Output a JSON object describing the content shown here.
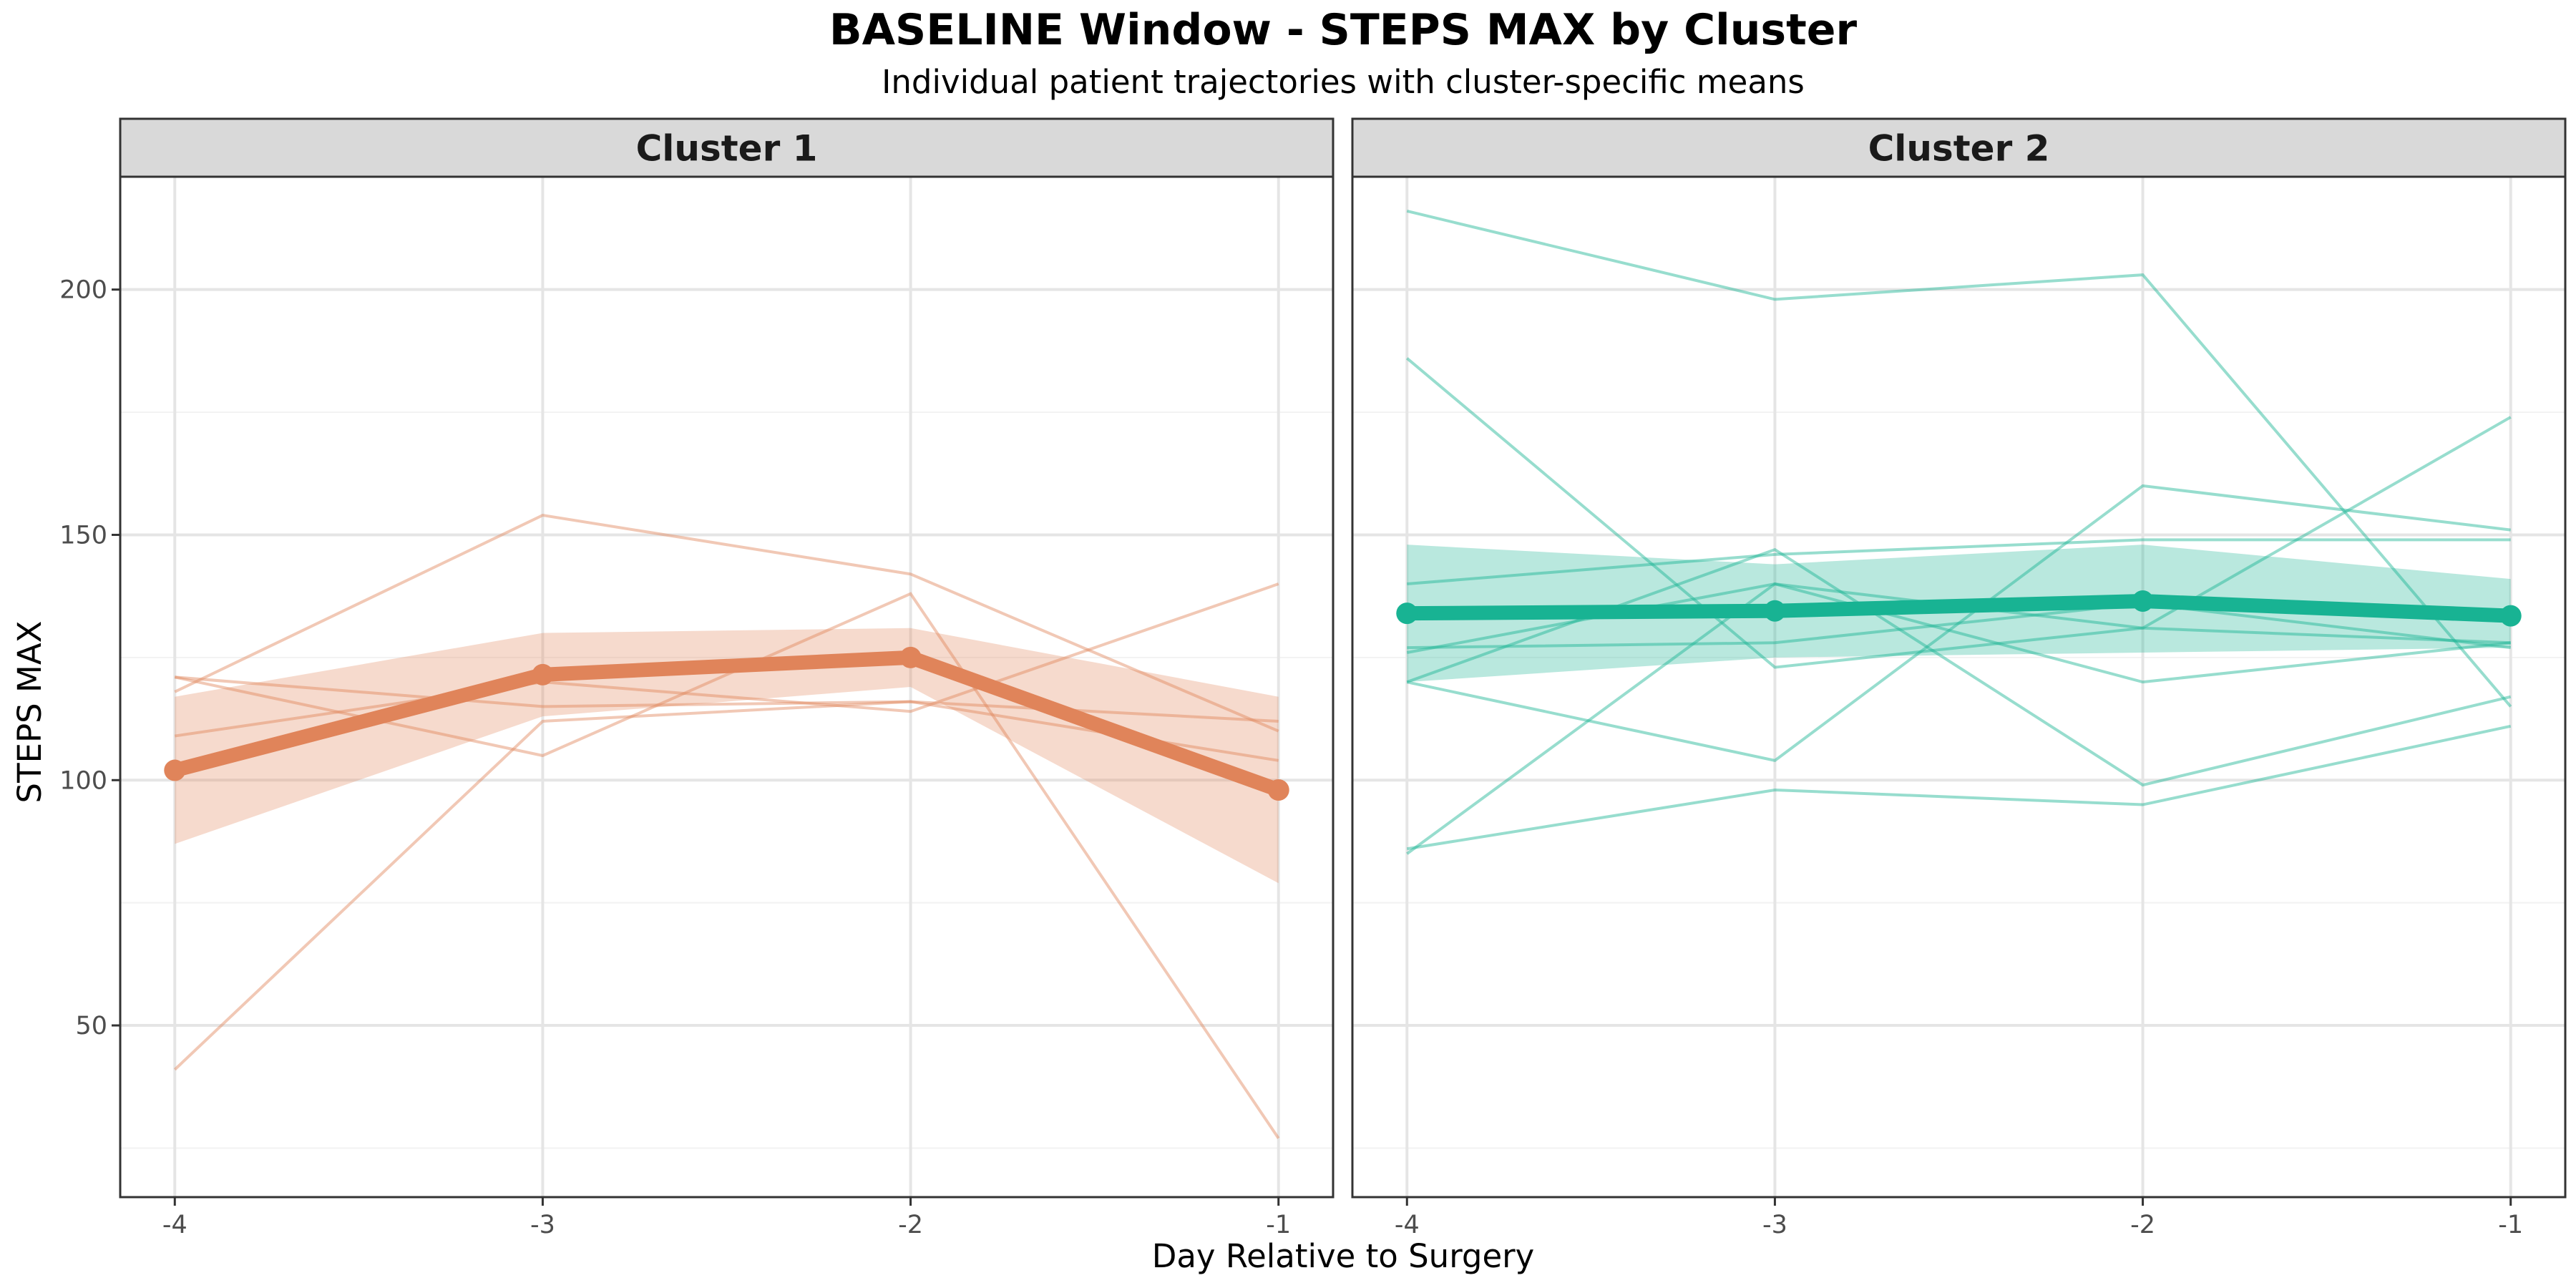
{
  "chart_data": {
    "type": "line",
    "title": "BASELINE Window - STEPS MAX by Cluster",
    "subtitle": "Individual patient trajectories with cluster-specific means",
    "xlabel": "Day Relative to Surgery",
    "ylabel": "STEPS MAX",
    "x": [
      -4,
      -3,
      -2,
      -1
    ],
    "x_tick_labels": [
      "-4",
      "-3",
      "-2",
      "-1"
    ],
    "y_ticks": [
      50,
      100,
      150,
      200
    ],
    "y_tick_labels": [
      "50",
      "100",
      "150",
      "200"
    ],
    "ylim": [
      15,
      223
    ],
    "grid": true,
    "panels": [
      {
        "label": "Cluster 1",
        "color": "#E0845A",
        "mean": [
          102,
          121.5,
          125,
          98
        ],
        "ribbon_lower": [
          87,
          113,
          119,
          79
        ],
        "ribbon_upper": [
          117,
          130,
          131,
          117
        ],
        "individual_series": [
          [
            118,
            154,
            142,
            110
          ],
          [
            41,
            112,
            116,
            112
          ],
          [
            121,
            105,
            138,
            27
          ],
          [
            109,
            120,
            114,
            140
          ],
          [
            121,
            115,
            116,
            104
          ]
        ]
      },
      {
        "label": "Cluster 2",
        "color": "#18B393",
        "mean": [
          134,
          134.5,
          136.5,
          133.5
        ],
        "ribbon_lower": [
          120,
          125,
          126,
          127
        ],
        "ribbon_upper": [
          148,
          144,
          148,
          141
        ],
        "individual_series": [
          [
            216,
            198,
            203,
            115
          ],
          [
            186,
            123,
            131,
            174
          ],
          [
            140,
            146,
            149,
            149
          ],
          [
            120,
            104,
            160,
            151
          ],
          [
            127,
            128,
            136,
            127
          ],
          [
            126,
            140,
            120,
            128
          ],
          [
            120,
            147,
            99,
            117
          ],
          [
            85,
            140,
            131,
            128
          ],
          [
            86,
            98,
            95,
            111
          ]
        ]
      }
    ]
  }
}
